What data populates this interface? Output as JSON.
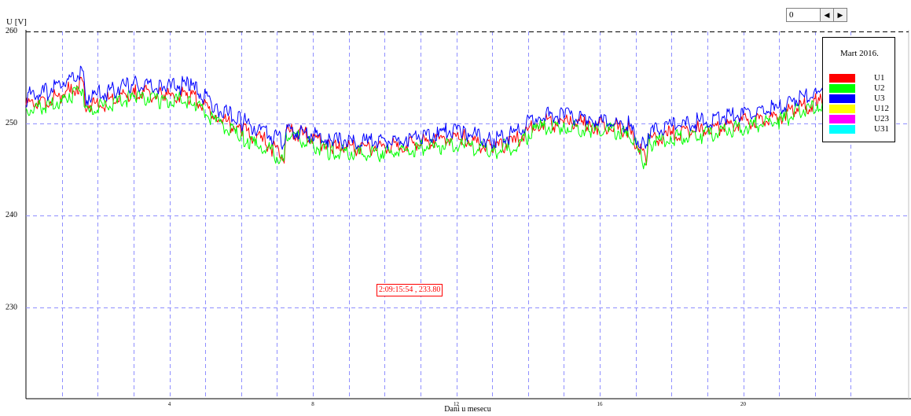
{
  "chart_data": {
    "type": "line",
    "ylabel": "U [V]",
    "xlabel": "Dani u mesecu",
    "ylim": [
      220,
      260
    ],
    "xlim": [
      0,
      24
    ],
    "yticks": [
      230,
      240,
      250,
      260
    ],
    "xticks": [
      4,
      8,
      12,
      16,
      20
    ],
    "grid": true,
    "legend_position": "top-right",
    "legend_title": "Mart 2016.",
    "series": [
      {
        "name": "U1",
        "color": "#ff0000",
        "x": [
          0,
          0.5,
          1,
          1.6,
          1.65,
          2.2,
          3,
          3.8,
          4.6,
          5.3,
          6,
          6.6,
          7.2,
          7.25,
          7.8,
          8.5,
          9.5,
          10.5,
          11.5,
          12.2,
          13,
          13.6,
          14.3,
          15,
          15.7,
          16.3,
          16.8,
          17.3,
          17.35,
          18,
          19,
          20,
          21,
          21.5,
          22.1,
          22.6,
          23.2,
          24
        ],
        "y": [
          252.6,
          252.9,
          253.6,
          254.9,
          252.3,
          252.8,
          253.9,
          253.6,
          253.6,
          251.4,
          249.8,
          248.7,
          247.2,
          249.8,
          249.2,
          248.1,
          247.9,
          248.2,
          248.8,
          248.9,
          248.0,
          248.6,
          250.6,
          250.7,
          250.4,
          250.2,
          249.9,
          246.6,
          248.8,
          249.4,
          249.9,
          250.7,
          251.2,
          252.2,
          252.8,
          252.9,
          251.4,
          249.6
        ]
      },
      {
        "name": "U2",
        "color": "#00ff00",
        "x": [
          0,
          0.5,
          1,
          1.6,
          1.65,
          2.2,
          3,
          3.8,
          4.6,
          5.3,
          6,
          6.6,
          7.2,
          7.25,
          7.8,
          8.5,
          9.5,
          10.5,
          11.5,
          12.2,
          13,
          13.6,
          14.3,
          15,
          15.7,
          16.3,
          16.8,
          17.3,
          17.35,
          18,
          19,
          20,
          21,
          21.5,
          22.1,
          22.6,
          23.2,
          24
        ],
        "y": [
          252.0,
          252.4,
          253.1,
          254.5,
          251.8,
          252.4,
          253.5,
          253.1,
          253.2,
          250.9,
          249.2,
          248.0,
          246.5,
          249.5,
          248.5,
          247.5,
          247.3,
          247.6,
          248.1,
          248.3,
          247.5,
          248.0,
          250.1,
          250.3,
          249.9,
          249.8,
          249.4,
          246.1,
          248.4,
          248.9,
          249.4,
          250.2,
          250.9,
          251.8,
          252.4,
          252.5,
          251.0,
          249.3
        ]
      },
      {
        "name": "U3",
        "color": "#0000ff",
        "x": [
          0,
          0.5,
          1,
          1.6,
          1.65,
          2.2,
          3,
          3.8,
          4.6,
          5.3,
          6,
          6.6,
          7.2,
          7.25,
          7.8,
          8.5,
          9.5,
          10.5,
          11.5,
          12.2,
          13,
          13.6,
          14.3,
          15,
          15.7,
          16.3,
          16.8,
          17.3,
          17.35,
          18,
          19,
          20,
          21,
          21.5,
          22.1,
          22.6,
          23.2,
          24
        ],
        "y": [
          253.4,
          253.9,
          254.9,
          256.0,
          253.3,
          253.9,
          254.8,
          254.6,
          254.6,
          252.4,
          250.8,
          249.8,
          248.5,
          250.0,
          249.5,
          248.7,
          248.5,
          248.9,
          249.5,
          249.8,
          248.6,
          249.3,
          251.5,
          251.5,
          250.9,
          250.7,
          250.4,
          247.6,
          249.7,
          250.3,
          250.8,
          251.6,
          252.2,
          253.4,
          253.8,
          253.8,
          252.2,
          250.6
        ]
      },
      {
        "name": "U12",
        "color": "#ffff00",
        "x": [],
        "y": []
      },
      {
        "name": "U23",
        "color": "#ff00ff",
        "x": [],
        "y": []
      },
      {
        "name": "U31",
        "color": "#00ffff",
        "x": [],
        "y": []
      }
    ],
    "annotation": {
      "text": "2:09:15:54 , 233.80",
      "color": "#ff0000"
    }
  },
  "controls": {
    "spinner_value": "0",
    "left_arrow": "◀",
    "right_arrow": "▶"
  },
  "colors": {
    "grid": "#8f8fff",
    "frame": "#000000",
    "line_edge": "#c0c0c0",
    "background": "#ffffff"
  }
}
